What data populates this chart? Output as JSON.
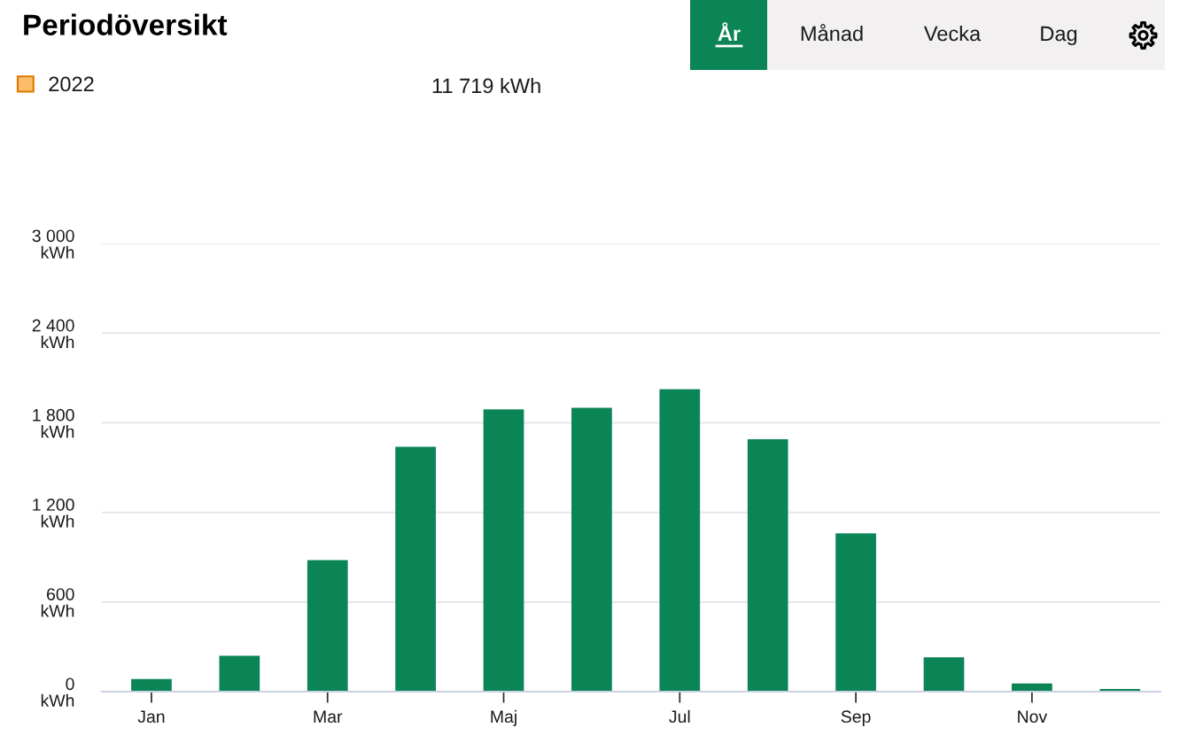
{
  "chart_data": {
    "type": "bar",
    "title": "Periodöversikt",
    "categories": [
      "Jan",
      null,
      "Mar",
      null,
      "Maj",
      null,
      "Jul",
      null,
      "Sep",
      null,
      "Nov",
      null
    ],
    "series": [
      {
        "name": "2022",
        "color": "#0b8456",
        "values": [
          85,
          240,
          880,
          1640,
          1890,
          1900,
          2025,
          1690,
          1060,
          230,
          55,
          18
        ]
      }
    ],
    "ylim": [
      0,
      3000
    ],
    "yticks": [
      {
        "value": 0,
        "label": "0\nkWh"
      },
      {
        "value": 600,
        "label": "600\nkWh"
      },
      {
        "value": 1200,
        "label": "1 200\nkWh"
      },
      {
        "value": 1800,
        "label": "1 800\nkWh"
      },
      {
        "value": 2400,
        "label": "2 400\nkWh"
      },
      {
        "value": 3000,
        "label": "3 000\nkWh"
      }
    ],
    "grid": "y",
    "legend": "top left",
    "annotations": [
      "11 719 kWh",
      "År",
      "Månad",
      "Vecka",
      "Dag"
    ]
  }
}
